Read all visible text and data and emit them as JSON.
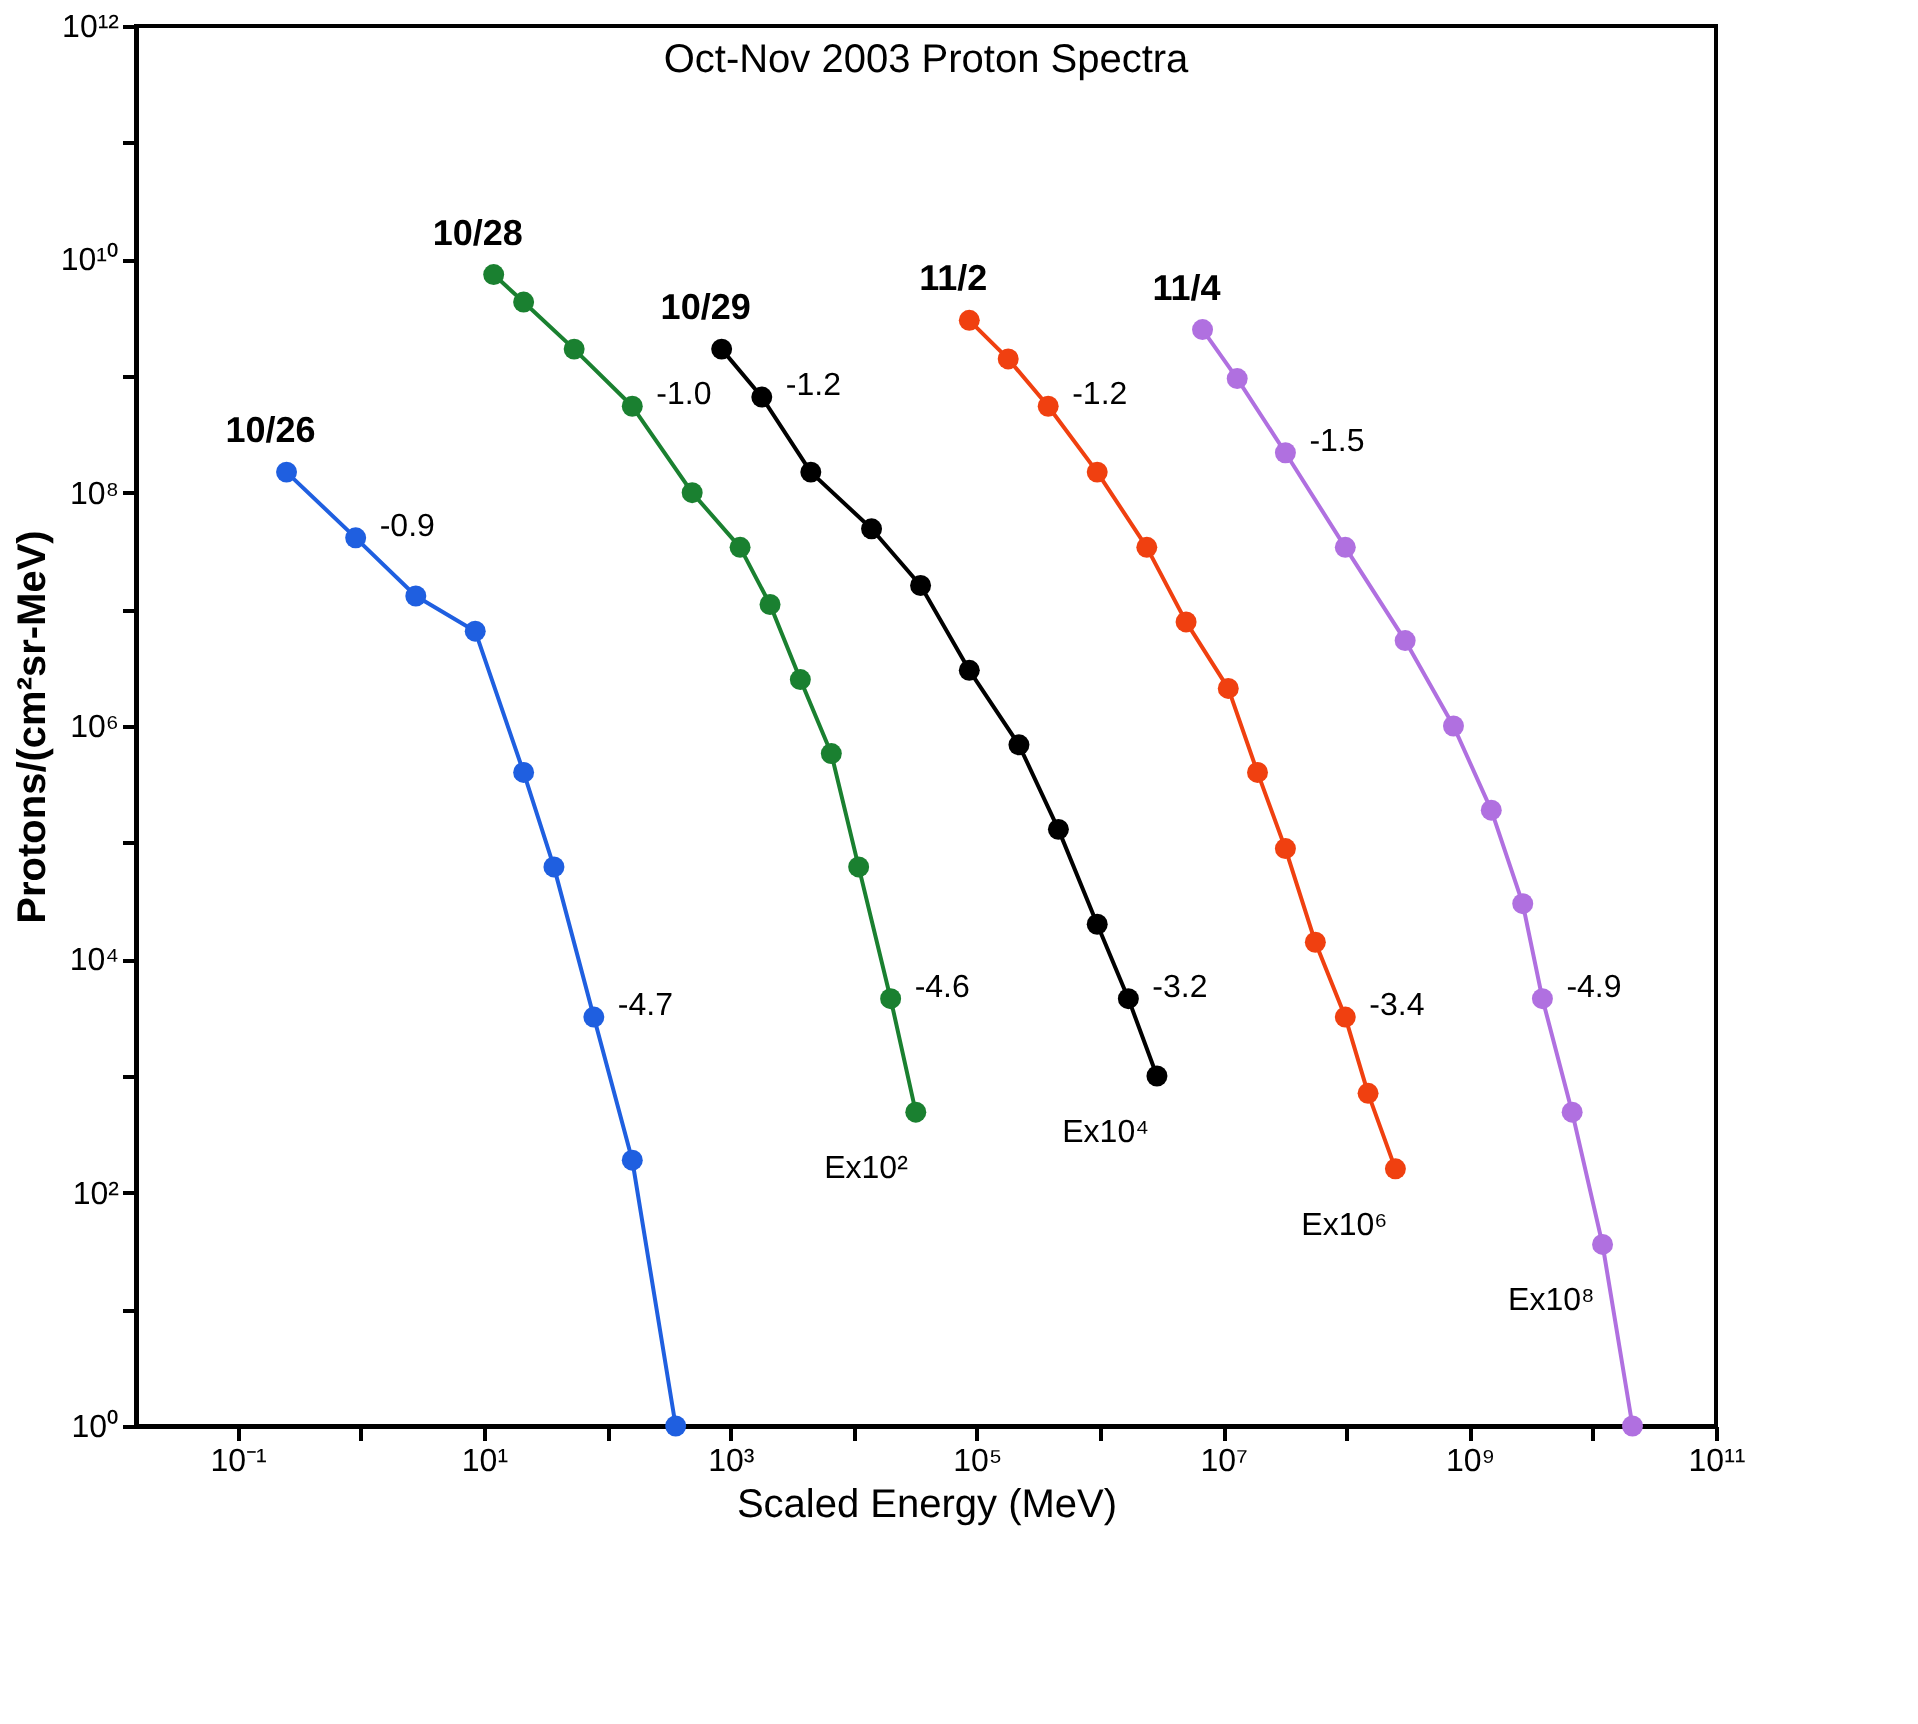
{
  "chart_data": {
    "type": "line",
    "title": "Oct-Nov 2003 Proton Spectra",
    "xlabel": "Scaled Energy (MeV)",
    "ylabel": "Protons/(cm²sr-MeV)",
    "log": "xy",
    "grid": false,
    "marker": "circle",
    "line_style": "solid",
    "xlim": [
      0.015,
      100000000000.0
    ],
    "ylim": [
      1,
      1000000000000.0
    ],
    "xticks": [
      {
        "value": 0.1,
        "label": "10⁻¹"
      },
      {
        "value": 1,
        "label": null
      },
      {
        "value": 10,
        "label": "10¹"
      },
      {
        "value": 100,
        "label": null
      },
      {
        "value": 1000,
        "label": "10³"
      },
      {
        "value": 10000,
        "label": null
      },
      {
        "value": 100000,
        "label": "10⁵"
      },
      {
        "value": 1000000,
        "label": null
      },
      {
        "value": 10000000,
        "label": "10⁷"
      },
      {
        "value": 100000000,
        "label": null
      },
      {
        "value": 1000000000,
        "label": "10⁹"
      },
      {
        "value": 10000000000,
        "label": null
      },
      {
        "value": 100000000000,
        "label": "10¹¹"
      }
    ],
    "yticks": [
      {
        "value": 1,
        "label": "10⁰"
      },
      {
        "value": 10,
        "label": null
      },
      {
        "value": 100,
        "label": "10²"
      },
      {
        "value": 1000,
        "label": null
      },
      {
        "value": 10000,
        "label": "10⁴"
      },
      {
        "value": 100000,
        "label": null
      },
      {
        "value": 1000000,
        "label": "10⁶"
      },
      {
        "value": 10000000,
        "label": null
      },
      {
        "value": 100000000,
        "label": "10⁸"
      },
      {
        "value": 1000000000,
        "label": null
      },
      {
        "value": 10000000000,
        "label": "10¹⁰"
      },
      {
        "value": 100000000000,
        "label": null
      },
      {
        "value": 1000000000000,
        "label": "10¹²"
      }
    ],
    "series": [
      {
        "name": "10/26",
        "color": "#1f5fe0",
        "x": [
          0.25,
          0.91,
          2.8,
          8.5,
          21,
          37,
          78,
          160,
          360
        ],
        "values": [
          150000000.0,
          41000000.0,
          13000000.0,
          6500000.0,
          400000.0,
          62000.0,
          3200.0,
          190,
          1
        ]
      },
      {
        "name": "10/28",
        "color": "#1a8030",
        "x": [
          12,
          21,
          54,
          160,
          490,
          1200,
          2100,
          3700,
          6600,
          11000.0,
          20000.0,
          32000.0
        ],
        "values": [
          7400000000.0,
          4300000000.0,
          1700000000.0,
          550000000.0,
          100000000.0,
          34000000.0,
          11000000.0,
          2500000.0,
          580000.0,
          62000.0,
          4600.0,
          490
        ]
      },
      {
        "name": "10/29",
        "color": "#000000",
        "x": [
          850,
          1800,
          4500,
          14000.0,
          35000.0,
          87000.0,
          220000.0,
          460000.0,
          950000.0,
          1700000.0,
          2900000.0
        ],
        "values": [
          1700000000.0,
          660000000.0,
          150000000.0,
          49000000.0,
          16000000.0,
          3000000.0,
          690000.0,
          130000.0,
          20000.0,
          4600.0,
          1000.0
        ]
      },
      {
        "name": "11/2",
        "color": "#f04010",
        "x": [
          87000.0,
          180000.0,
          380000.0,
          950000.0,
          2400000.0,
          5000000.0,
          11000000.0,
          19000000.0,
          32000000.0,
          56000000.0,
          98000000.0,
          150000000.0,
          250000000.0
        ],
        "values": [
          3000000000.0,
          1400000000.0,
          550000000.0,
          150000000.0,
          34000000.0,
          7800000.0,
          2100000.0,
          400000.0,
          89000.0,
          14000.0,
          3200.0,
          710,
          160
        ]
      },
      {
        "name": "11/4",
        "color": "#b070e0",
        "x": [
          6800000.0,
          13000000.0,
          32000000.0,
          98000000.0,
          300000000.0,
          740000000.0,
          1500000000.0,
          2700000000.0,
          3900000000.0,
          6800000000.0,
          12000000000.0,
          21000000000.0
        ],
        "values": [
          2500000000.0,
          950000000.0,
          220000000.0,
          34000000.0,
          5400000.0,
          1000000.0,
          190000.0,
          30000.0,
          4600.0,
          490,
          36,
          1
        ]
      }
    ],
    "annotations": [
      {
        "text": "-0.9",
        "x": 0.91,
        "y": 41000000.0
      },
      {
        "text": "-4.7",
        "x": 78,
        "y": 3200
      },
      {
        "text": "-1.0",
        "x": 160,
        "y": 550000000.0
      },
      {
        "text": "-4.6",
        "x": 20000.0,
        "y": 4600
      },
      {
        "text": "-1.2",
        "x": 1800,
        "y": 660000000.0
      },
      {
        "text": "-3.2",
        "x": 1700000.0,
        "y": 4600
      },
      {
        "text": "-1.2",
        "x": 380000.0,
        "y": 550000000.0
      },
      {
        "text": "-3.4",
        "x": 98000000.0,
        "y": 3200
      },
      {
        "text": "-1.5",
        "x": 32000000.0,
        "y": 220000000.0
      },
      {
        "text": "-4.9",
        "x": 3900000000.0,
        "y": 4600
      },
      {
        "text": "Ex10²",
        "x": 32000.0,
        "y": 490
      },
      {
        "text": "Ex10⁴",
        "x": 2900000.0,
        "y": 1000
      },
      {
        "text": "Ex10⁶",
        "x": 250000000.0,
        "y": 160
      },
      {
        "text": "Ex10⁸",
        "x": 12000000000.0,
        "y": 36
      }
    ]
  }
}
